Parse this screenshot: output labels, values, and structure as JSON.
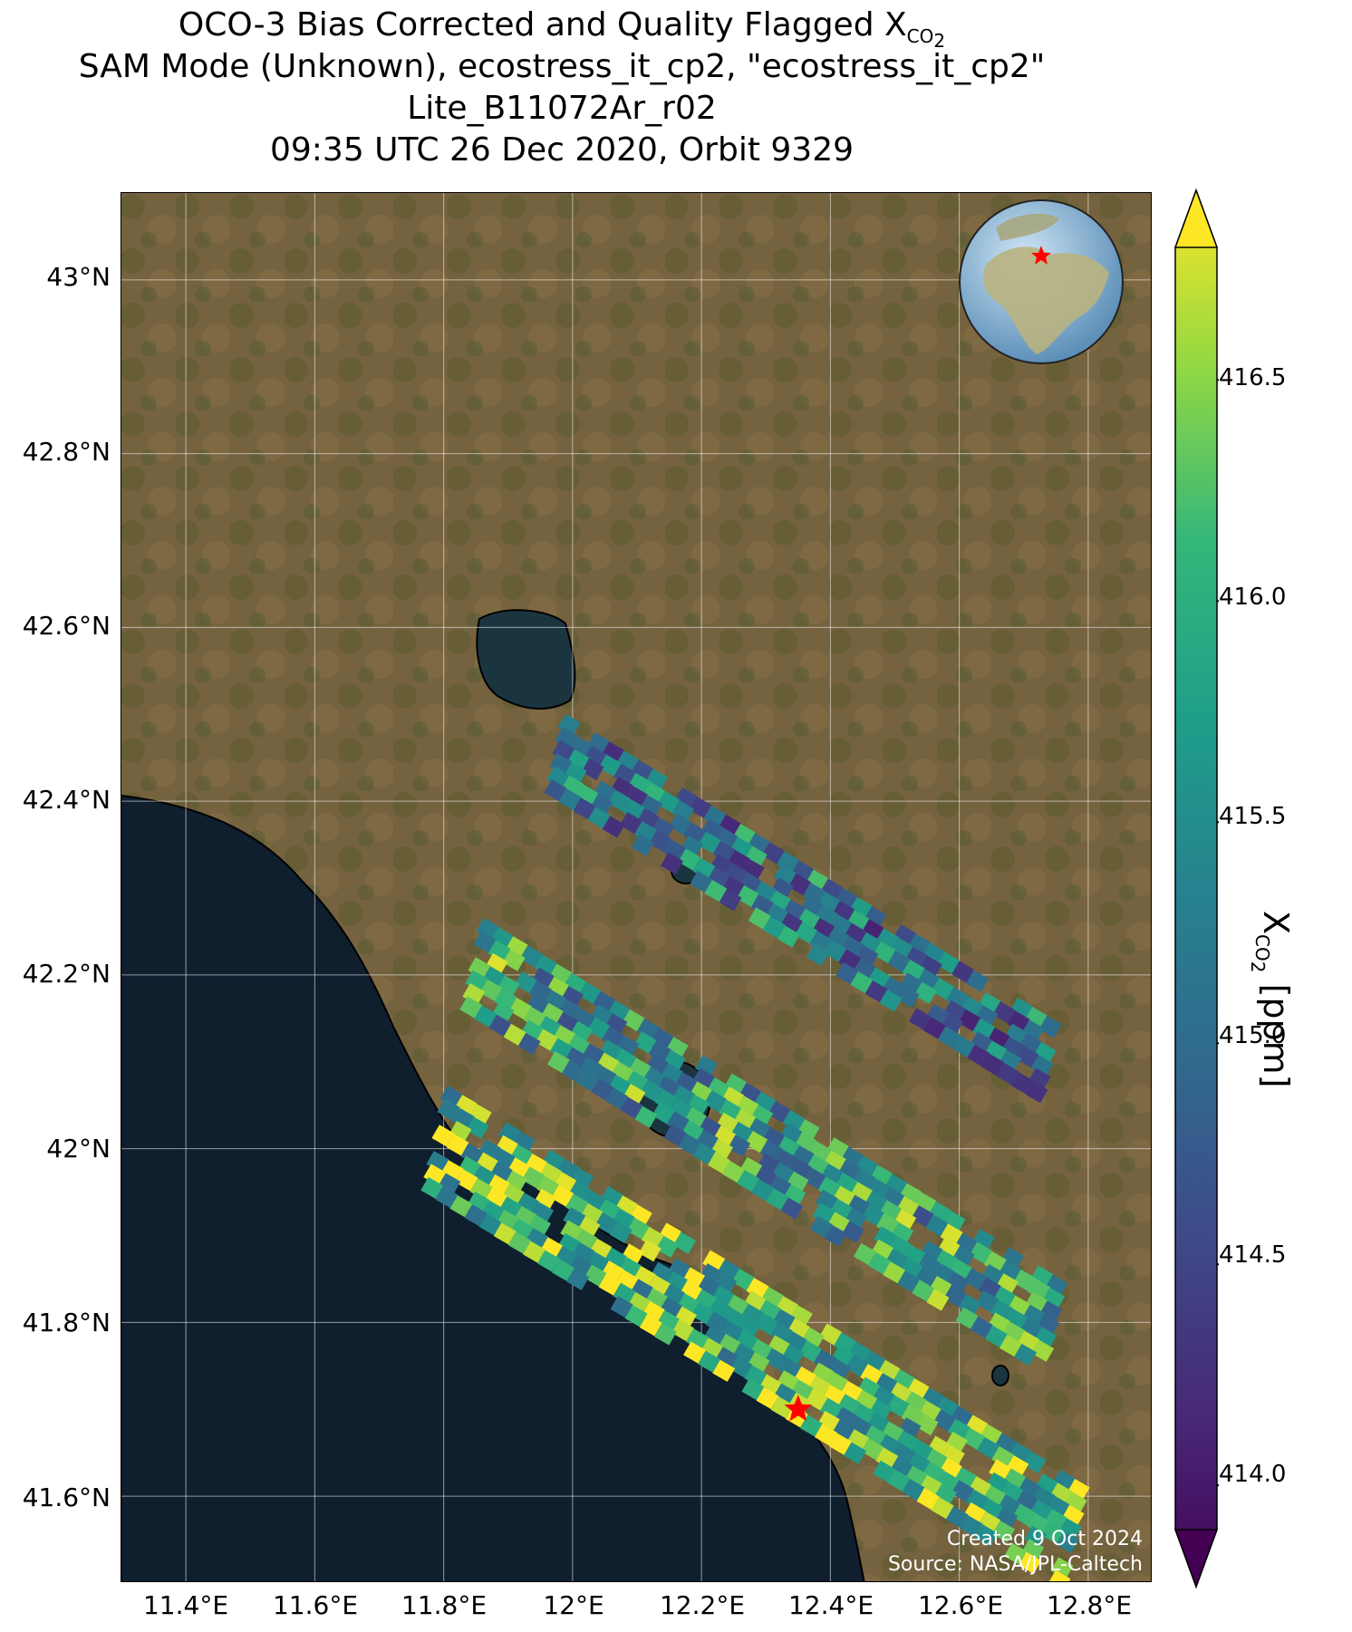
{
  "title": {
    "line1_prefix": "OCO-3 Bias Corrected and Quality Flagged X",
    "line1_sub": "CO",
    "line1_subsub": "2",
    "line2": "SAM Mode (Unknown), ecostress_it_cp2, \"ecostress_it_cp2\"",
    "line3": "Lite_B11072Ar_r02",
    "line4": "09:35 UTC 26 Dec 2020, Orbit 9329"
  },
  "axes": {
    "lat_ticks": [
      "43°N",
      "42.8°N",
      "42.6°N",
      "42.4°N",
      "42.2°N",
      "42°N",
      "41.8°N",
      "41.6°N"
    ],
    "lon_ticks": [
      "11.4°E",
      "11.6°E",
      "11.8°E",
      "12°E",
      "12.2°E",
      "12.4°E",
      "12.6°E",
      "12.8°E"
    ],
    "lat_range": [
      41.5,
      43.1
    ],
    "lon_range": [
      11.3,
      12.9
    ]
  },
  "colorbar": {
    "label_prefix": "X",
    "label_sub": "CO",
    "label_subsub": "2",
    "label_suffix": " [ppm]",
    "ticks": [
      "416.5",
      "416.0",
      "415.5",
      "415.0",
      "414.5",
      "414.0"
    ],
    "range": [
      413.9,
      416.8
    ],
    "colormap": "viridis"
  },
  "credit": {
    "line1": "Created 9 Oct 2024",
    "line2": "Source: NASA/JPL-Caltech"
  },
  "target_marker": {
    "lon": 12.35,
    "lat": 41.7,
    "color": "#ff0000",
    "icon": "star-icon"
  },
  "colors": {
    "sea": "#0f1f2e",
    "land": "#6b5a3c",
    "grid": "#ffffff",
    "marker": "#ff0000"
  }
}
